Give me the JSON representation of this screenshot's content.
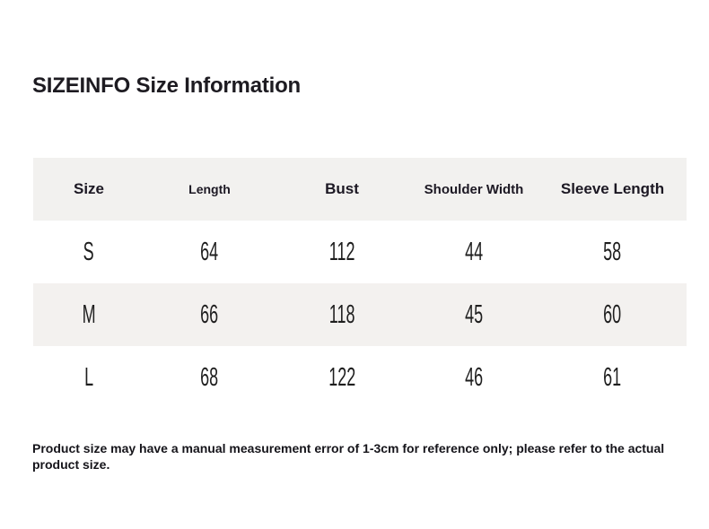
{
  "title": "SIZEINFO Size Information",
  "table": {
    "headers": [
      "Size",
      "Length",
      "Bust",
      "Shoulder Width",
      "Sleeve Length"
    ],
    "rows": [
      [
        "S",
        "64",
        "112",
        "44",
        "58"
      ],
      [
        "M",
        "66",
        "118",
        "45",
        "60"
      ],
      [
        "L",
        "68",
        "122",
        "46",
        "61"
      ]
    ]
  },
  "note": "Product size may have a manual measurement error of 1-3cm for reference only; please refer to the actual product size.",
  "colors": {
    "page_bg": "#ffffff",
    "header_bg": "#f2f1ef",
    "alt_row_bg": "#f3f1ef",
    "text": "#1d1b21"
  }
}
